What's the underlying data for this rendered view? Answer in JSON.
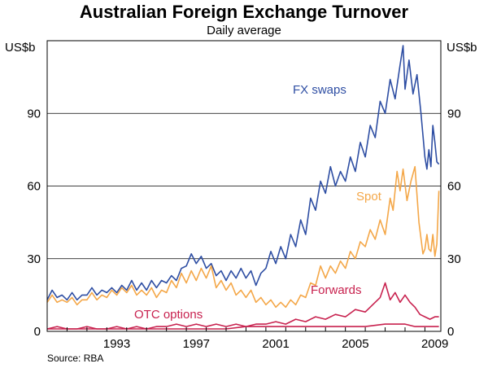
{
  "chart_data": {
    "type": "line",
    "title": "Australian Foreign Exchange Turnover",
    "subtitle": "Daily average",
    "ylabel_left": "US$b",
    "ylabel_right": "US$b",
    "source": "Source: RBA",
    "xlim": [
      1990.0,
      2009.8
    ],
    "ylim": [
      0,
      120
    ],
    "yticks": [
      0,
      30,
      60,
      90
    ],
    "xticks": [
      1993,
      1997,
      2001,
      2005,
      2009
    ],
    "grid": "horizontal",
    "series": [
      {
        "name": "FX swaps",
        "color": "#2e4ea3",
        "points": [
          [
            1990.0,
            13
          ],
          [
            1990.25,
            17
          ],
          [
            1990.5,
            14
          ],
          [
            1990.75,
            15
          ],
          [
            1991.0,
            13
          ],
          [
            1991.25,
            16
          ],
          [
            1991.5,
            13
          ],
          [
            1991.75,
            15
          ],
          [
            1992.0,
            15
          ],
          [
            1992.25,
            18
          ],
          [
            1992.5,
            15
          ],
          [
            1992.75,
            17
          ],
          [
            1993.0,
            16
          ],
          [
            1993.25,
            18
          ],
          [
            1993.5,
            16
          ],
          [
            1993.75,
            19
          ],
          [
            1994.0,
            17
          ],
          [
            1994.25,
            21
          ],
          [
            1994.5,
            17
          ],
          [
            1994.75,
            20
          ],
          [
            1995.0,
            17
          ],
          [
            1995.25,
            21
          ],
          [
            1995.5,
            18
          ],
          [
            1995.75,
            21
          ],
          [
            1996.0,
            20
          ],
          [
            1996.25,
            23
          ],
          [
            1996.5,
            21
          ],
          [
            1996.75,
            26
          ],
          [
            1997.0,
            27
          ],
          [
            1997.25,
            32
          ],
          [
            1997.5,
            28
          ],
          [
            1997.75,
            31
          ],
          [
            1998.0,
            26
          ],
          [
            1998.25,
            28
          ],
          [
            1998.5,
            23
          ],
          [
            1998.75,
            25
          ],
          [
            1999.0,
            21
          ],
          [
            1999.25,
            25
          ],
          [
            1999.5,
            22
          ],
          [
            1999.75,
            26
          ],
          [
            2000.0,
            22
          ],
          [
            2000.25,
            25
          ],
          [
            2000.5,
            19
          ],
          [
            2000.75,
            24
          ],
          [
            2001.0,
            26
          ],
          [
            2001.25,
            33
          ],
          [
            2001.5,
            28
          ],
          [
            2001.75,
            35
          ],
          [
            2002.0,
            30
          ],
          [
            2002.25,
            40
          ],
          [
            2002.5,
            35
          ],
          [
            2002.75,
            46
          ],
          [
            2003.0,
            40
          ],
          [
            2003.25,
            55
          ],
          [
            2003.5,
            50
          ],
          [
            2003.75,
            62
          ],
          [
            2004.0,
            57
          ],
          [
            2004.25,
            68
          ],
          [
            2004.5,
            60
          ],
          [
            2004.75,
            66
          ],
          [
            2005.0,
            62
          ],
          [
            2005.25,
            72
          ],
          [
            2005.5,
            66
          ],
          [
            2005.75,
            78
          ],
          [
            2006.0,
            72
          ],
          [
            2006.25,
            85
          ],
          [
            2006.5,
            80
          ],
          [
            2006.75,
            95
          ],
          [
            2007.0,
            90
          ],
          [
            2007.25,
            104
          ],
          [
            2007.5,
            96
          ],
          [
            2007.75,
            110
          ],
          [
            2007.9,
            118
          ],
          [
            2008.0,
            100
          ],
          [
            2008.2,
            112
          ],
          [
            2008.4,
            98
          ],
          [
            2008.6,
            106
          ],
          [
            2008.8,
            90
          ],
          [
            2009.0,
            72
          ],
          [
            2009.1,
            67
          ],
          [
            2009.2,
            75
          ],
          [
            2009.3,
            68
          ],
          [
            2009.4,
            85
          ],
          [
            2009.5,
            78
          ],
          [
            2009.6,
            70
          ],
          [
            2009.7,
            69
          ]
        ]
      },
      {
        "name": "Spot",
        "color": "#f4a748",
        "points": [
          [
            1990.0,
            12
          ],
          [
            1990.25,
            15
          ],
          [
            1990.5,
            12
          ],
          [
            1990.75,
            13
          ],
          [
            1991.0,
            12
          ],
          [
            1991.25,
            14
          ],
          [
            1991.5,
            11
          ],
          [
            1991.75,
            13
          ],
          [
            1992.0,
            13
          ],
          [
            1992.25,
            16
          ],
          [
            1992.5,
            13
          ],
          [
            1992.75,
            15
          ],
          [
            1993.0,
            14
          ],
          [
            1993.25,
            17
          ],
          [
            1993.5,
            15
          ],
          [
            1993.75,
            18
          ],
          [
            1994.0,
            16
          ],
          [
            1994.25,
            19
          ],
          [
            1994.5,
            15
          ],
          [
            1994.75,
            17
          ],
          [
            1995.0,
            15
          ],
          [
            1995.25,
            18
          ],
          [
            1995.5,
            14
          ],
          [
            1995.75,
            17
          ],
          [
            1996.0,
            16
          ],
          [
            1996.25,
            21
          ],
          [
            1996.5,
            18
          ],
          [
            1996.75,
            24
          ],
          [
            1997.0,
            20
          ],
          [
            1997.25,
            25
          ],
          [
            1997.5,
            21
          ],
          [
            1997.75,
            26
          ],
          [
            1998.0,
            22
          ],
          [
            1998.25,
            27
          ],
          [
            1998.5,
            18
          ],
          [
            1998.75,
            21
          ],
          [
            1999.0,
            17
          ],
          [
            1999.25,
            20
          ],
          [
            1999.5,
            15
          ],
          [
            1999.75,
            17
          ],
          [
            2000.0,
            14
          ],
          [
            2000.25,
            17
          ],
          [
            2000.5,
            12
          ],
          [
            2000.75,
            14
          ],
          [
            2001.0,
            11
          ],
          [
            2001.25,
            13
          ],
          [
            2001.5,
            10
          ],
          [
            2001.75,
            12
          ],
          [
            2002.0,
            10
          ],
          [
            2002.25,
            13
          ],
          [
            2002.5,
            11
          ],
          [
            2002.75,
            15
          ],
          [
            2003.0,
            14
          ],
          [
            2003.25,
            20
          ],
          [
            2003.5,
            19
          ],
          [
            2003.75,
            27
          ],
          [
            2004.0,
            22
          ],
          [
            2004.25,
            27
          ],
          [
            2004.5,
            24
          ],
          [
            2004.75,
            29
          ],
          [
            2005.0,
            26
          ],
          [
            2005.25,
            33
          ],
          [
            2005.5,
            30
          ],
          [
            2005.75,
            37
          ],
          [
            2006.0,
            35
          ],
          [
            2006.25,
            42
          ],
          [
            2006.5,
            38
          ],
          [
            2006.75,
            46
          ],
          [
            2007.0,
            40
          ],
          [
            2007.25,
            55
          ],
          [
            2007.4,
            50
          ],
          [
            2007.6,
            66
          ],
          [
            2007.75,
            58
          ],
          [
            2007.9,
            67
          ],
          [
            2008.1,
            54
          ],
          [
            2008.3,
            62
          ],
          [
            2008.5,
            68
          ],
          [
            2008.7,
            45
          ],
          [
            2008.9,
            32
          ],
          [
            2009.0,
            34
          ],
          [
            2009.1,
            40
          ],
          [
            2009.2,
            34
          ],
          [
            2009.3,
            33
          ],
          [
            2009.4,
            40
          ],
          [
            2009.5,
            31
          ],
          [
            2009.6,
            36
          ],
          [
            2009.7,
            58
          ]
        ]
      },
      {
        "name": "Forwards",
        "color": "#c8224f",
        "points": [
          [
            1990.0,
            1
          ],
          [
            1990.5,
            2
          ],
          [
            1991.0,
            1
          ],
          [
            1991.5,
            1
          ],
          [
            1992.0,
            2
          ],
          [
            1992.5,
            1
          ],
          [
            1993.0,
            1
          ],
          [
            1993.5,
            2
          ],
          [
            1994.0,
            1
          ],
          [
            1994.5,
            2
          ],
          [
            1995.0,
            1
          ],
          [
            1995.5,
            2
          ],
          [
            1996.0,
            2
          ],
          [
            1996.5,
            3
          ],
          [
            1997.0,
            2
          ],
          [
            1997.5,
            3
          ],
          [
            1998.0,
            2
          ],
          [
            1998.5,
            3
          ],
          [
            1999.0,
            2
          ],
          [
            1999.5,
            3
          ],
          [
            2000.0,
            2
          ],
          [
            2000.5,
            3
          ],
          [
            2001.0,
            3
          ],
          [
            2001.5,
            4
          ],
          [
            2002.0,
            3
          ],
          [
            2002.5,
            5
          ],
          [
            2003.0,
            4
          ],
          [
            2003.5,
            6
          ],
          [
            2004.0,
            5
          ],
          [
            2004.5,
            7
          ],
          [
            2005.0,
            6
          ],
          [
            2005.5,
            9
          ],
          [
            2006.0,
            8
          ],
          [
            2006.5,
            12
          ],
          [
            2006.75,
            14
          ],
          [
            2007.0,
            20
          ],
          [
            2007.25,
            13
          ],
          [
            2007.5,
            16
          ],
          [
            2007.75,
            12
          ],
          [
            2008.0,
            15
          ],
          [
            2008.25,
            12
          ],
          [
            2008.5,
            10
          ],
          [
            2008.75,
            7
          ],
          [
            2009.0,
            6
          ],
          [
            2009.25,
            5
          ],
          [
            2009.5,
            6
          ],
          [
            2009.7,
            6
          ]
        ]
      },
      {
        "name": "OTC options",
        "color": "#c8224f",
        "points": [
          [
            1990.0,
            1
          ],
          [
            1991.0,
            1
          ],
          [
            1992.0,
            1
          ],
          [
            1993.0,
            1
          ],
          [
            1994.0,
            1
          ],
          [
            1995.0,
            1
          ],
          [
            1996.0,
            1
          ],
          [
            1997.0,
            1
          ],
          [
            1998.0,
            1
          ],
          [
            1999.0,
            1
          ],
          [
            2000.0,
            2
          ],
          [
            2001.0,
            2
          ],
          [
            2002.0,
            2
          ],
          [
            2003.0,
            2
          ],
          [
            2004.0,
            2
          ],
          [
            2005.0,
            2
          ],
          [
            2006.0,
            2
          ],
          [
            2007.0,
            3
          ],
          [
            2007.5,
            3
          ],
          [
            2008.0,
            3
          ],
          [
            2008.5,
            2
          ],
          [
            2009.0,
            2
          ],
          [
            2009.7,
            2
          ]
        ]
      }
    ]
  }
}
